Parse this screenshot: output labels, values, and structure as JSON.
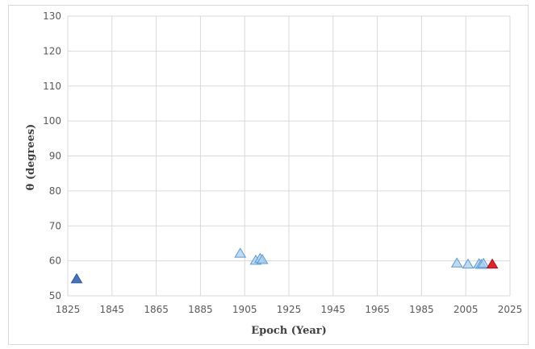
{
  "chart_data": {
    "type": "scatter",
    "title": "",
    "xlabel": "Epoch (Year)",
    "ylabel": "θ (degrees)",
    "xlim": [
      1825,
      2025
    ],
    "ylim": [
      50,
      130
    ],
    "x_ticks": [
      1825,
      1845,
      1865,
      1885,
      1905,
      1925,
      1945,
      1965,
      1985,
      2005,
      2025
    ],
    "y_ticks": [
      50,
      60,
      70,
      80,
      90,
      100,
      110,
      120,
      130
    ],
    "grid": true,
    "legend": "none",
    "series": [
      {
        "marker": "triangle",
        "color": "#4472c4",
        "points": [
          {
            "x": 1829,
            "y": 55.0
          }
        ]
      },
      {
        "marker": "triangle",
        "color": "#a9cdef",
        "points": [
          {
            "x": 1903,
            "y": 62.3
          },
          {
            "x": 1910,
            "y": 60.3
          },
          {
            "x": 1912,
            "y": 60.8
          },
          {
            "x": 1913,
            "y": 60.5
          },
          {
            "x": 2001,
            "y": 59.5
          },
          {
            "x": 2006,
            "y": 59.2
          },
          {
            "x": 2011,
            "y": 59.3
          },
          {
            "x": 2012,
            "y": 59.1
          },
          {
            "x": 2013,
            "y": 59.4
          }
        ]
      },
      {
        "marker": "triangle",
        "color": "#e8202a",
        "points": [
          {
            "x": 2017,
            "y": 59.2
          }
        ]
      }
    ]
  }
}
